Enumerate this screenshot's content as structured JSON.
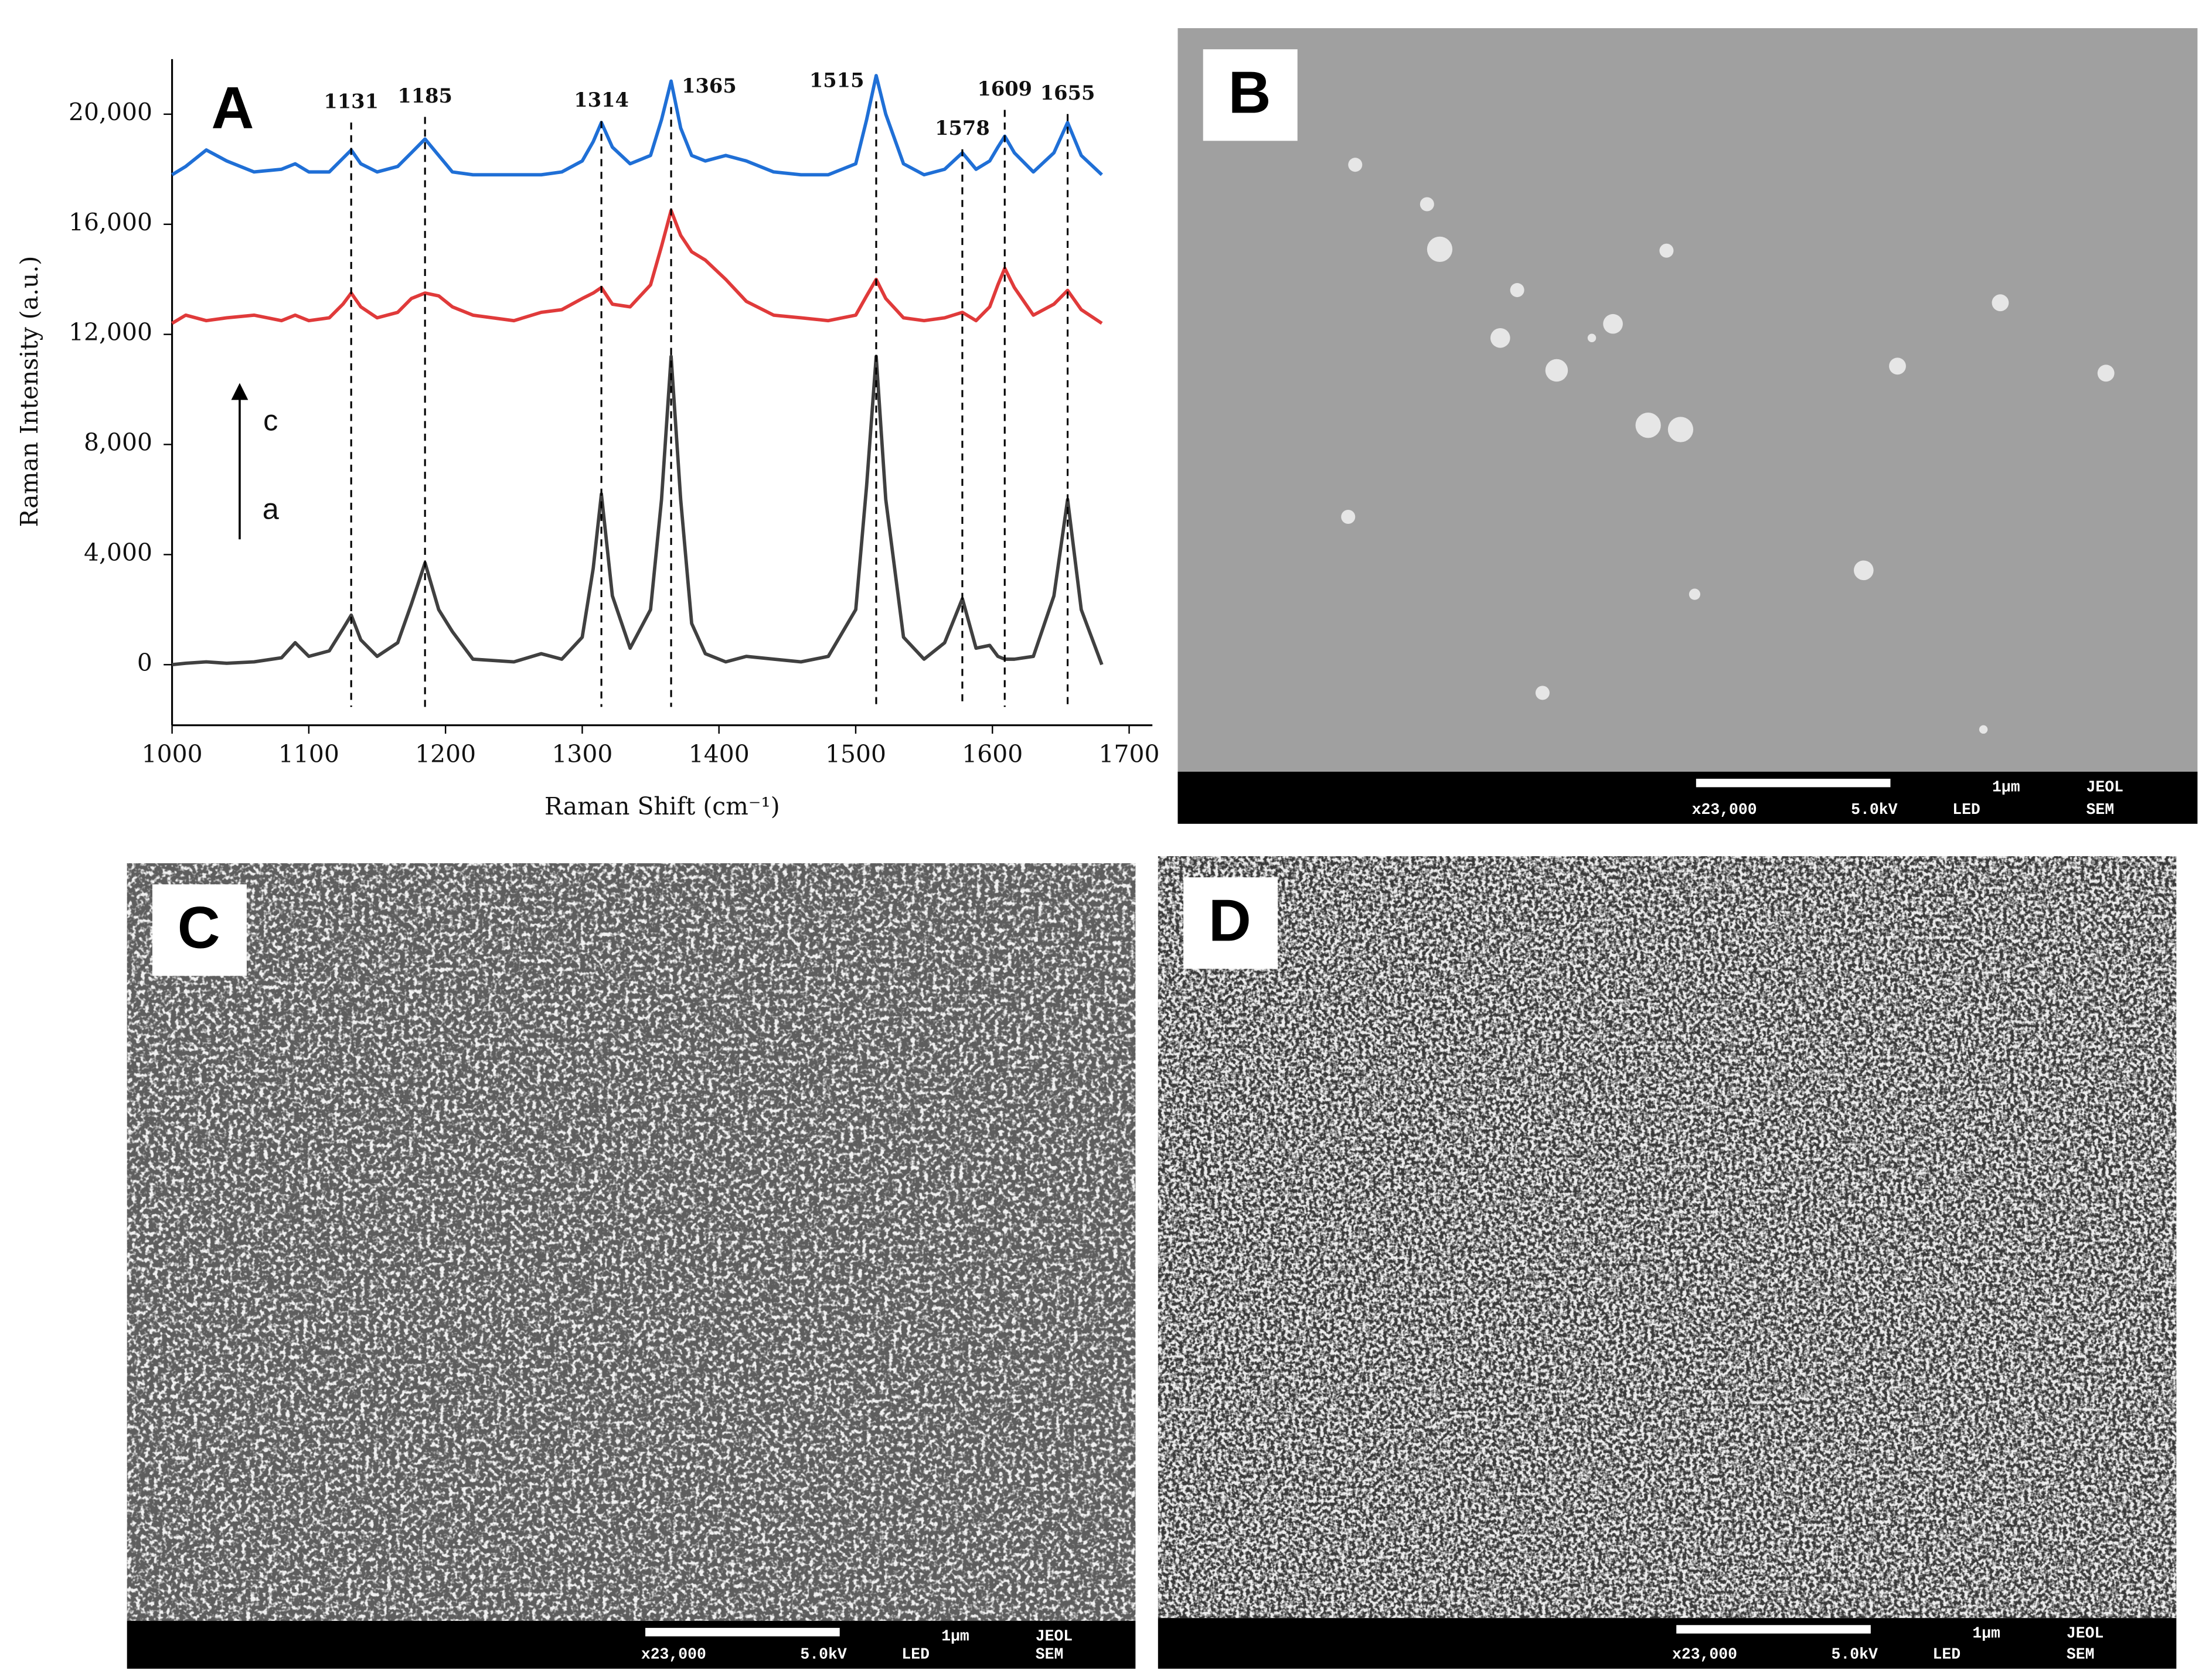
{
  "chart_data": {
    "type": "line",
    "title": "A",
    "xlabel": "Raman Shift (cm⁻¹)",
    "ylabel": "Raman Intensity (a.u.)",
    "xlim": [
      1000,
      1717
    ],
    "ylim": [
      -2200,
      22000
    ],
    "xticks": [
      1000,
      1100,
      1200,
      1300,
      1400,
      1500,
      1600,
      1700
    ],
    "yticks": [
      0,
      {
        "value": 4000,
        "label": "4,000"
      },
      {
        "value": 8000,
        "label": "8,000"
      },
      {
        "value": 12000,
        "label": "12,000"
      },
      {
        "value": 16000,
        "label": "16,000"
      },
      {
        "value": 20000,
        "label": "20,000"
      }
    ],
    "x": [
      1000,
      1010,
      1025,
      1040,
      1060,
      1080,
      1090,
      1100,
      1115,
      1125,
      1131,
      1138,
      1150,
      1165,
      1175,
      1185,
      1195,
      1205,
      1220,
      1250,
      1270,
      1285,
      1300,
      1308,
      1314,
      1322,
      1335,
      1350,
      1358,
      1365,
      1372,
      1380,
      1390,
      1405,
      1420,
      1440,
      1460,
      1480,
      1500,
      1508,
      1515,
      1522,
      1535,
      1550,
      1565,
      1578,
      1588,
      1598,
      1604,
      1609,
      1616,
      1630,
      1645,
      1655,
      1665,
      1680
    ],
    "series": [
      {
        "color": "#1f6fd6",
        "values": [
          17800,
          18100,
          18700,
          18300,
          17900,
          18000,
          18200,
          17900,
          17900,
          18400,
          18700,
          18200,
          17900,
          18100,
          18600,
          19100,
          18500,
          17900,
          17800,
          17800,
          17800,
          17900,
          18300,
          19000,
          19700,
          18800,
          18200,
          18500,
          19800,
          21200,
          19500,
          18500,
          18300,
          18500,
          18300,
          17900,
          17800,
          17800,
          18200,
          19800,
          21400,
          20000,
          18200,
          17800,
          18000,
          18600,
          18000,
          18300,
          18800,
          19200,
          18600,
          17900,
          18600,
          19700,
          18500,
          17800
        ]
      },
      {
        "color": "#e03a3a",
        "values": [
          12400,
          12700,
          12500,
          12600,
          12700,
          12500,
          12700,
          12500,
          12600,
          13100,
          13500,
          13000,
          12600,
          12800,
          13300,
          13500,
          13400,
          13000,
          12700,
          12500,
          12800,
          12900,
          13300,
          13500,
          13700,
          13100,
          13000,
          13800,
          15200,
          16500,
          15600,
          15000,
          14700,
          14000,
          13200,
          12700,
          12600,
          12500,
          12700,
          13400,
          14000,
          13300,
          12600,
          12500,
          12600,
          12800,
          12500,
          13000,
          13800,
          14400,
          13700,
          12700,
          13100,
          13600,
          12900,
          12400
        ]
      },
      {
        "color": "#404040",
        "values": [
          0,
          50,
          100,
          50,
          100,
          250,
          800,
          300,
          500,
          1300,
          1800,
          900,
          300,
          800,
          2200,
          3700,
          2000,
          1200,
          200,
          100,
          400,
          200,
          1000,
          3500,
          6200,
          2500,
          600,
          2000,
          6000,
          11200,
          6000,
          1500,
          400,
          100,
          300,
          200,
          100,
          300,
          2000,
          6500,
          11200,
          6000,
          1000,
          200,
          800,
          2400,
          600,
          700,
          300,
          200,
          200,
          300,
          2500,
          6000,
          2000,
          0
        ]
      }
    ],
    "peaks": [
      1131,
      1185,
      1314,
      1365,
      1515,
      1578,
      1609,
      1655
    ],
    "arrow_labels": [
      "c",
      "a"
    ]
  },
  "panels": [
    {
      "label": "B",
      "scale": "1μm",
      "maker": "JEOL",
      "magnification": "x23,000",
      "voltage": "5.0kV",
      "detector": "LED",
      "mode": "SEM"
    },
    {
      "label": "C",
      "scale": "1μm",
      "maker": "JEOL",
      "magnification": "x23,000",
      "voltage": "5.0kV",
      "detector": "LED",
      "mode": "SEM"
    },
    {
      "label": "D",
      "scale": "1μm",
      "maker": "JEOL",
      "magnification": "x23,000",
      "voltage": "5.0kV",
      "detector": "LED",
      "mode": "SEM"
    }
  ]
}
